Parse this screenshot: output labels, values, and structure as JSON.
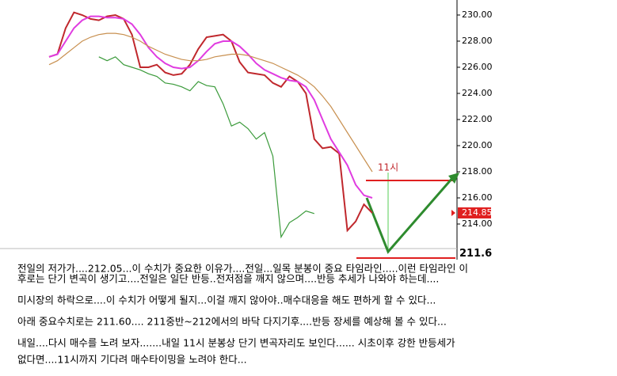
{
  "chart_data": {
    "type": "line",
    "categories": [
      null,
      null,
      null,
      null,
      null,
      null,
      null,
      null,
      null,
      null,
      null,
      null,
      null,
      null,
      null,
      null,
      null,
      null,
      null,
      null,
      null,
      null,
      null,
      null,
      null,
      null,
      null,
      null,
      null,
      null,
      null,
      null,
      null,
      null,
      null,
      null,
      null,
      null,
      null,
      null
    ],
    "series": [
      {
        "color": "#c0282d",
        "values": [
          226.8,
          227,
          229,
          230.2,
          230,
          229.7,
          229.6,
          229.9,
          230,
          229.7,
          228.5,
          226,
          226,
          226.2,
          225.6,
          225.4,
          225.5,
          226.2,
          227.4,
          228.3,
          228.4,
          228.5,
          228,
          226.4,
          225.6,
          225.5,
          225.4,
          224.8,
          224.5,
          225.3,
          224.9,
          224,
          220.5,
          219.8,
          219.9,
          219.4,
          213.5,
          214.2,
          215.5,
          214.85
        ]
      },
      {
        "color": "#e03ce0",
        "values": [
          226.8,
          227,
          228,
          229,
          229.6,
          229.9,
          229.9,
          229.8,
          229.8,
          229.7,
          229.3,
          228.5,
          227.5,
          226.8,
          226.3,
          226,
          225.9,
          226,
          226.5,
          227.2,
          227.8,
          228,
          228,
          227.6,
          227,
          226.3,
          225.8,
          225.5,
          225.2,
          225,
          224.9,
          224.5,
          223.5,
          222,
          220.5,
          219.5,
          218.5,
          217,
          216.2,
          216
        ]
      },
      {
        "color": "#c89050",
        "values": [
          226.2,
          226.5,
          227,
          227.5,
          228,
          228.3,
          228.5,
          228.6,
          228.6,
          228.5,
          228.3,
          228,
          227.6,
          227.3,
          227,
          226.8,
          226.6,
          226.5,
          226.5,
          226.6,
          226.8,
          226.9,
          227,
          227,
          226.9,
          226.7,
          226.5,
          226.3,
          226,
          225.7,
          225.4,
          225,
          224.5,
          223.8,
          223,
          222,
          221,
          220,
          219,
          218
        ]
      },
      {
        "color": "#3a9a3a",
        "values": [
          null,
          null,
          null,
          null,
          null,
          null,
          226.8,
          226.5,
          226.8,
          226.2,
          226,
          225.8,
          225.5,
          225.3,
          224.8,
          224.7,
          224.5,
          224.2,
          224.9,
          224.6,
          224.5,
          223.2,
          221.5,
          221.8,
          221.3,
          220.5,
          221,
          219.2,
          213,
          214.1,
          214.5,
          215,
          214.8,
          null,
          null,
          null,
          null,
          null,
          null,
          null
        ]
      }
    ],
    "ylim": [
      211.6,
      231.15
    ],
    "yticks": [
      {
        "value": 214,
        "label": "214.00"
      },
      {
        "value": 216,
        "label": "216.00"
      },
      {
        "value": 218,
        "label": "218.00"
      },
      {
        "value": 220,
        "label": "220.00"
      },
      {
        "value": 222,
        "label": "222.00"
      },
      {
        "value": 224,
        "label": "224.00"
      },
      {
        "value": 226,
        "label": "226.00"
      },
      {
        "value": 228,
        "label": "228.00"
      },
      {
        "value": 230,
        "label": "230.00"
      }
    ],
    "last_price": {
      "value": 214.85,
      "label": "214.85"
    },
    "low_mark": {
      "value": 211.6,
      "label": "211.6"
    },
    "annotation": "11시",
    "commentary": [
      "전일의 저가가....212.05...이 수치가 중요한 이유가....전일...일목 분봉이 중요 타임라인.....이런 타임라인 이",
      "후로는 단기 변곡이 생기고....전일은 일단 반등..전저점을 깨지 않으며....반등 추세가 나와야 하는데....",
      "미시장의 하락으로....이 수치가 어떻게 될지...이걸 깨지 않아야..매수대응을 해도 편하게 할 수 있다...",
      "아래 중요수치로는 211.60.... 211중반~212에서의 바닥 다지기후....반등 장세를 예상해 볼 수 있다...",
      "내일....다시 매수를 노려 보자.......내일 11시 분봉상 단기 변곡자리도 보인다...... 시초이후 강한 반등세가",
      "없다면....11시까지 기다려 매수타이밍을 노려야 한다..."
    ]
  }
}
